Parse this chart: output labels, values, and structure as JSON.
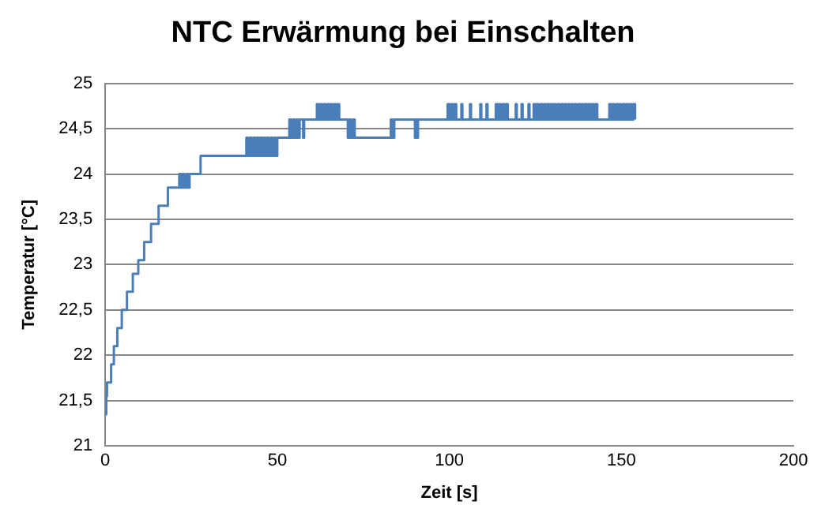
{
  "chart_data": {
    "type": "step",
    "title": "NTC Erwärmung bei Einschalten",
    "xlabel": "Zeit [s]",
    "ylabel": "Temperatur [°C]",
    "xlim": [
      0,
      200
    ],
    "xticks": [
      0,
      50,
      100,
      150,
      200
    ],
    "ylim": [
      21,
      25
    ],
    "yticks": [
      21,
      {
        "value": 21.5,
        "label": "21,5"
      },
      22,
      {
        "value": 22.5,
        "label": "22,5"
      },
      23,
      {
        "value": 23.5,
        "label": "23,5"
      },
      24,
      {
        "value": 24.5,
        "label": "24,5"
      },
      25
    ],
    "grid": "y",
    "legend": false,
    "series": [
      {
        "color": "#4a7ebb",
        "x": [
          0,
          0.3,
          0.5,
          1.7,
          2.5,
          3.5,
          4.8,
          6.3,
          8,
          9.6,
          11.3,
          13.3,
          15.5,
          18.2,
          21.5,
          22,
          22.5,
          23,
          23.5,
          24,
          24.5,
          27.7,
          41,
          41.5,
          42,
          42.5,
          43,
          43.5,
          44,
          44.5,
          45,
          45.5,
          46,
          46.5,
          47,
          47.5,
          48,
          48.5,
          49,
          49.5,
          50,
          53.5,
          54,
          54.5,
          55,
          55.5,
          56,
          56.5,
          57.5,
          57.8,
          61.5,
          62,
          62.5,
          63,
          63.5,
          64,
          64.5,
          65,
          65.5,
          66,
          66.5,
          67,
          67.5,
          68,
          70.5,
          71,
          71.5,
          72,
          72.5,
          83,
          83.5,
          84,
          90,
          90.3,
          90.6,
          90.9,
          99.5,
          100,
          100.5,
          101,
          101.5,
          102,
          103.5,
          103.8,
          106,
          106.3,
          109,
          109.3,
          110.8,
          111.1,
          113.5,
          114,
          114.5,
          115,
          115.5,
          116,
          116.5,
          117,
          119.3,
          119.6,
          121,
          121.3,
          123,
          123.3,
          124.5,
          125,
          125.5,
          126,
          126.5,
          127,
          127.5,
          128,
          128.5,
          129,
          129.5,
          130,
          130.5,
          131,
          131.5,
          132,
          132.5,
          133,
          133.5,
          134,
          134.5,
          135,
          135.5,
          136,
          136.5,
          137,
          137.5,
          138,
          138.5,
          139,
          139.5,
          140,
          140.5,
          141,
          141.5,
          142,
          142.5,
          143,
          146.5,
          147,
          147.5,
          148,
          148.5,
          149,
          149.5,
          150,
          150.5,
          151,
          151.5,
          152,
          152.5,
          153,
          153.5,
          154
        ],
        "values": [
          21.35,
          21.55,
          21.7,
          21.9,
          22.1,
          22.3,
          22.5,
          22.7,
          22.9,
          23.05,
          23.25,
          23.45,
          23.65,
          23.85,
          24.0,
          23.85,
          24.0,
          23.85,
          24.0,
          23.85,
          24.0,
          24.2,
          24.4,
          24.2,
          24.4,
          24.2,
          24.4,
          24.2,
          24.4,
          24.2,
          24.4,
          24.2,
          24.4,
          24.2,
          24.4,
          24.2,
          24.4,
          24.2,
          24.4,
          24.2,
          24.4,
          24.6,
          24.4,
          24.6,
          24.4,
          24.6,
          24.4,
          24.6,
          24.4,
          24.6,
          24.77,
          24.6,
          24.77,
          24.6,
          24.77,
          24.6,
          24.77,
          24.6,
          24.77,
          24.6,
          24.77,
          24.6,
          24.77,
          24.6,
          24.4,
          24.6,
          24.4,
          24.6,
          24.4,
          24.6,
          24.4,
          24.6,
          24.4,
          24.6,
          24.4,
          24.6,
          24.77,
          24.6,
          24.77,
          24.6,
          24.77,
          24.6,
          24.77,
          24.6,
          24.77,
          24.6,
          24.77,
          24.6,
          24.77,
          24.6,
          24.77,
          24.6,
          24.77,
          24.6,
          24.77,
          24.6,
          24.77,
          24.6,
          24.77,
          24.6,
          24.77,
          24.6,
          24.77,
          24.6,
          24.77,
          24.6,
          24.77,
          24.6,
          24.77,
          24.6,
          24.77,
          24.6,
          24.77,
          24.6,
          24.77,
          24.6,
          24.77,
          24.6,
          24.77,
          24.6,
          24.77,
          24.6,
          24.77,
          24.6,
          24.77,
          24.6,
          24.77,
          24.6,
          24.77,
          24.6,
          24.77,
          24.6,
          24.77,
          24.6,
          24.77,
          24.6,
          24.77,
          24.6,
          24.77,
          24.6,
          24.77,
          24.6,
          24.77,
          24.6,
          24.77,
          24.6,
          24.77,
          24.6,
          24.77,
          24.6,
          24.77,
          24.6,
          24.77,
          24.6,
          24.77,
          24.6,
          24.77,
          24.6
        ]
      }
    ]
  }
}
